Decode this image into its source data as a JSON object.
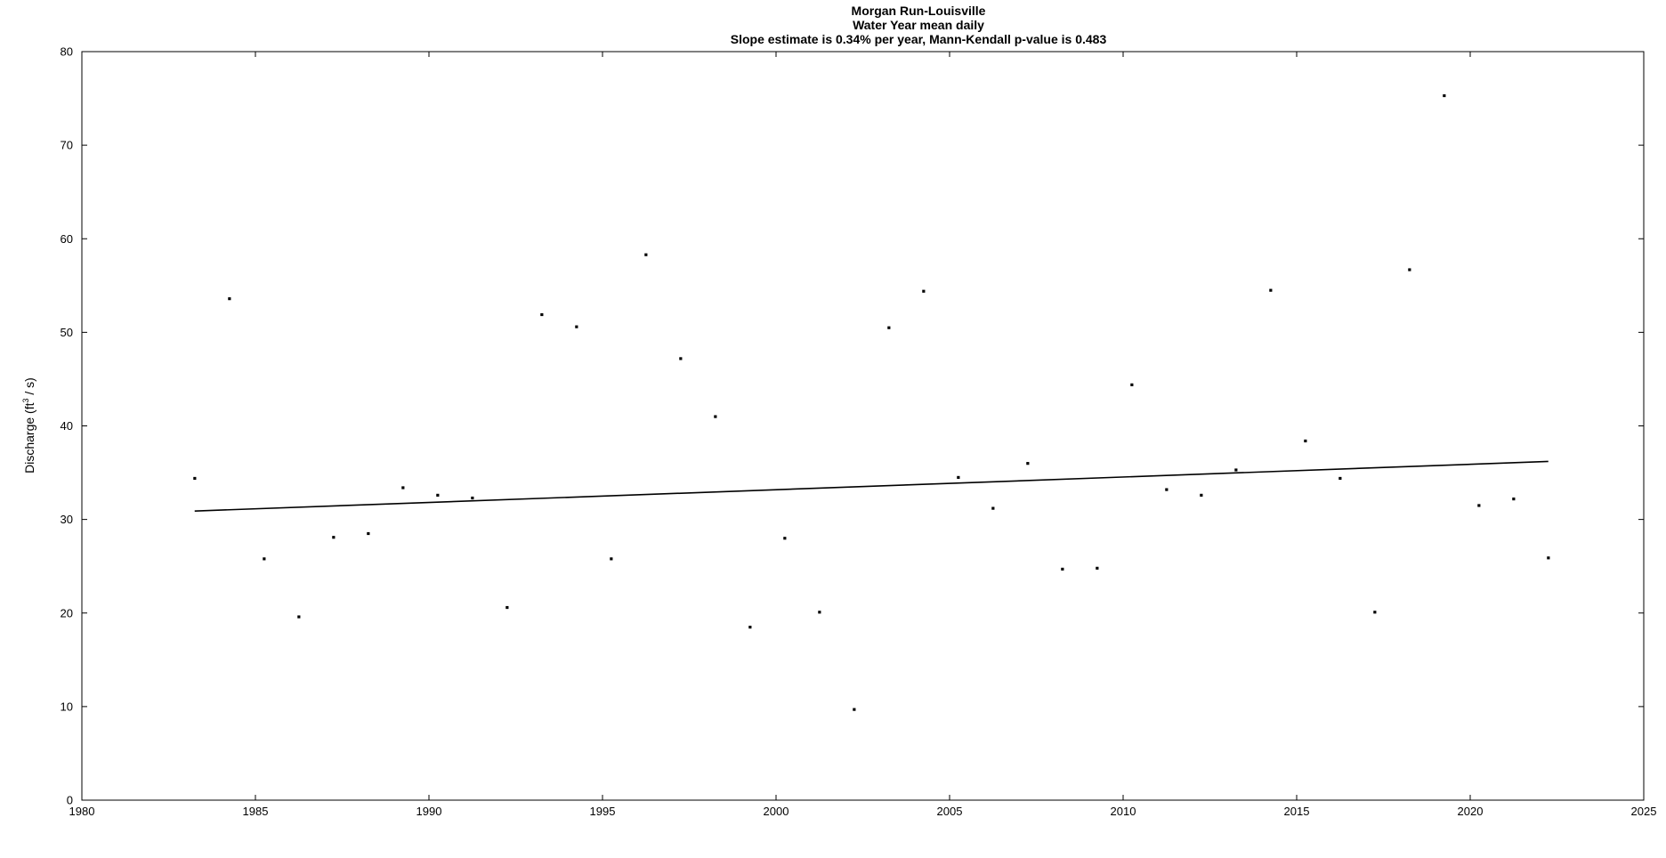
{
  "chart_data": {
    "type": "scatter",
    "title": "Morgan Run-Louisville",
    "subtitle": "Water Year  mean daily",
    "annotation": "Slope estimate is 0.34% per year, Mann-Kendall p-value is 0.483",
    "xlabel": "",
    "ylabel_prefix": "Discharge (ft",
    "ylabel_sup": "3",
    "ylabel_suffix": " / s)",
    "xlim": [
      1980,
      2025
    ],
    "ylim": [
      0,
      80
    ],
    "xticks": [
      1980,
      1985,
      1990,
      1995,
      2000,
      2005,
      2010,
      2015,
      2020,
      2025
    ],
    "yticks": [
      0,
      10,
      20,
      30,
      40,
      50,
      60,
      70,
      80
    ],
    "grid": false,
    "marker_color": "#000000",
    "line_color": "#000000",
    "series": [
      {
        "x": [
          1983.25,
          1984.25,
          1985.25,
          1986.25,
          1987.25,
          1988.25,
          1989.25,
          1990.25,
          1991.25,
          1992.25,
          1993.25,
          1994.25,
          1995.25,
          1996.25,
          1997.25,
          1998.25,
          1999.25,
          2000.25,
          2001.25,
          2002.25,
          2003.25,
          2004.25,
          2005.25,
          2006.25,
          2007.25,
          2008.25,
          2009.25,
          2010.25,
          2011.25,
          2012.25,
          2013.25,
          2014.25,
          2015.25,
          2016.25,
          2017.25,
          2018.25,
          2019.25,
          2020.25,
          2021.25,
          2022.25
        ],
        "y": [
          34.4,
          53.6,
          25.8,
          19.6,
          28.1,
          28.5,
          33.4,
          32.6,
          32.3,
          20.6,
          51.9,
          50.6,
          25.8,
          58.3,
          47.2,
          41.0,
          18.5,
          28.0,
          20.1,
          9.7,
          50.5,
          54.4,
          34.5,
          31.2,
          36.0,
          24.7,
          24.8,
          44.4,
          33.2,
          32.6,
          35.3,
          54.5,
          38.4,
          34.4,
          20.1,
          56.7,
          75.3,
          31.5,
          32.2,
          25.9
        ]
      }
    ],
    "trend_line": {
      "x": [
        1983.25,
        2022.25
      ],
      "y": [
        30.9,
        36.2
      ]
    }
  }
}
